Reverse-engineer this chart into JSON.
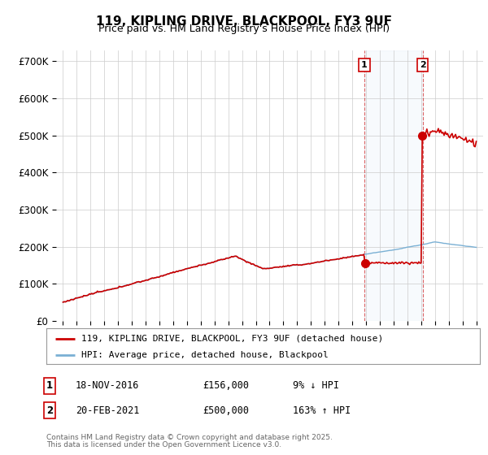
{
  "title": "119, KIPLING DRIVE, BLACKPOOL, FY3 9UF",
  "subtitle": "Price paid vs. HM Land Registry's House Price Index (HPI)",
  "ylim": [
    0,
    730000
  ],
  "yticks": [
    0,
    100000,
    200000,
    300000,
    400000,
    500000,
    600000,
    700000
  ],
  "ytick_labels": [
    "£0",
    "£100K",
    "£200K",
    "£300K",
    "£400K",
    "£500K",
    "£600K",
    "£700K"
  ],
  "sale1_year": 2016.88,
  "sale1_price": 156000,
  "sale2_year": 2021.12,
  "sale2_price": 500000,
  "sale1_date": "18-NOV-2016",
  "sale2_date": "20-FEB-2021",
  "sale1_pct": "9% ↓ HPI",
  "sale2_pct": "163% ↑ HPI",
  "red_color": "#cc0000",
  "blue_color": "#7ab0d4",
  "legend1": "119, KIPLING DRIVE, BLACKPOOL, FY3 9UF (detached house)",
  "legend2": "HPI: Average price, detached house, Blackpool",
  "footnote1": "Contains HM Land Registry data © Crown copyright and database right 2025.",
  "footnote2": "This data is licensed under the Open Government Licence v3.0.",
  "background_color": "#ffffff",
  "grid_color": "#cccccc"
}
